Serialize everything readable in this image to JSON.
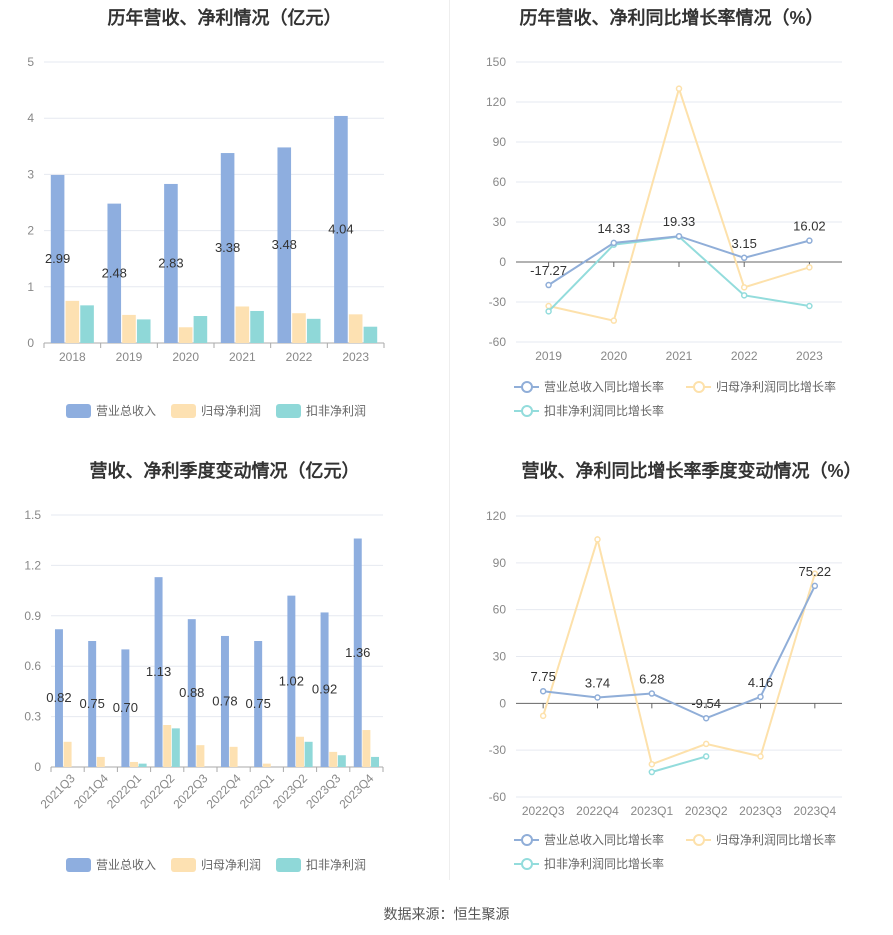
{
  "source_text": "数据来源：恒生聚源",
  "colors": {
    "revenue": "#8eaedf",
    "net_profit": "#fde1b2",
    "deducted_profit": "#8fd8d8",
    "revenue_line": "#90aed8",
    "net_profit_line": "#fde1ab",
    "deducted_line": "#93dcdc"
  },
  "chart_data": [
    {
      "id": "annual-amount",
      "type": "bar",
      "title": "历年营收、净利情况（亿元）",
      "categories": [
        "2018",
        "2019",
        "2020",
        "2021",
        "2022",
        "2023"
      ],
      "ylim": [
        0,
        5
      ],
      "yticks": [
        0,
        1,
        2,
        3,
        4,
        5
      ],
      "yticks_text": [
        "0",
        "1",
        "2",
        "3",
        "4",
        "5"
      ],
      "grid": true,
      "legend_position": "bottom",
      "series": [
        {
          "name": "营业总收入",
          "color_key": "revenue",
          "values": [
            2.99,
            2.48,
            2.83,
            3.38,
            3.48,
            4.04
          ],
          "labels": [
            "2.99",
            "2.48",
            "2.83",
            "3.38",
            "3.48",
            "4.04"
          ]
        },
        {
          "name": "归母净利润",
          "color_key": "net_profit",
          "values": [
            0.75,
            0.5,
            0.28,
            0.65,
            0.53,
            0.51
          ]
        },
        {
          "name": "扣非净利润",
          "color_key": "deducted_profit",
          "values": [
            0.67,
            0.42,
            0.48,
            0.57,
            0.43,
            0.29
          ]
        }
      ]
    },
    {
      "id": "annual-growth",
      "type": "line",
      "title": "历年营收、净利同比增长率情况（%）",
      "categories": [
        "2019",
        "2020",
        "2021",
        "2022",
        "2023"
      ],
      "ylim": [
        -60,
        150
      ],
      "yticks": [
        -60,
        -30,
        0,
        30,
        60,
        90,
        120,
        150
      ],
      "yticks_text": [
        "-60",
        "-30",
        "0",
        "30",
        "60",
        "90",
        "120",
        "150"
      ],
      "grid": true,
      "legend_position": "bottom",
      "series": [
        {
          "name": "营业总收入同比增长率",
          "color_key": "revenue_line",
          "values": [
            -17.27,
            14.33,
            19.33,
            3.15,
            16.02
          ],
          "labels": [
            "-17.27",
            "14.33",
            "19.33",
            "3.15",
            "16.02"
          ]
        },
        {
          "name": "归母净利润同比增长率",
          "color_key": "net_profit_line",
          "values": [
            -33,
            -44,
            130,
            -19,
            -4
          ]
        },
        {
          "name": "扣非净利润同比增长率",
          "color_key": "deducted_line",
          "values": [
            -37,
            13,
            19,
            -25,
            -33
          ]
        }
      ]
    },
    {
      "id": "quarterly-amount",
      "type": "bar",
      "title": "营收、净利季度变动情况（亿元）",
      "categories": [
        "2021Q3",
        "2021Q4",
        "2022Q1",
        "2022Q2",
        "2022Q3",
        "2022Q4",
        "2023Q1",
        "2023Q2",
        "2023Q3",
        "2023Q4"
      ],
      "ylim": [
        0,
        1.5
      ],
      "yticks": [
        0,
        0.3,
        0.6,
        0.9,
        1.2,
        1.5
      ],
      "yticks_text": [
        "0",
        "0.3",
        "0.6",
        "0.9",
        "1.2",
        "1.5"
      ],
      "grid": true,
      "legend_position": "bottom",
      "series": [
        {
          "name": "营业总收入",
          "color_key": "revenue",
          "values": [
            0.82,
            0.75,
            0.7,
            1.13,
            0.88,
            0.78,
            0.75,
            1.02,
            0.92,
            1.36
          ],
          "labels": [
            "0.82",
            "0.75",
            "0.70",
            "1.13",
            "0.88",
            "0.78",
            "0.75",
            "1.02",
            "0.92",
            "1.36"
          ]
        },
        {
          "name": "归母净利润",
          "color_key": "net_profit",
          "values": [
            0.15,
            0.06,
            0.03,
            0.25,
            0.13,
            0.12,
            0.02,
            0.18,
            0.09,
            0.22
          ]
        },
        {
          "name": "扣非净利润",
          "color_key": "deducted_profit",
          "values": [
            0,
            0,
            0.02,
            0.23,
            0,
            0,
            0,
            0.15,
            0.07,
            0.06
          ]
        }
      ]
    },
    {
      "id": "quarterly-growth",
      "type": "line",
      "title": "营收、净利同比增长率季度变动情况（%）",
      "categories": [
        "2022Q3",
        "2022Q4",
        "2023Q1",
        "2023Q2",
        "2023Q3",
        "2023Q4"
      ],
      "ylim": [
        -60,
        120
      ],
      "yticks": [
        -60,
        -30,
        0,
        30,
        60,
        90,
        120
      ],
      "yticks_text": [
        "-60",
        "-30",
        "0",
        "30",
        "60",
        "90",
        "120"
      ],
      "grid": true,
      "legend_position": "bottom",
      "series": [
        {
          "name": "营业总收入同比增长率",
          "color_key": "revenue_line",
          "values": [
            7.75,
            3.74,
            6.28,
            -9.54,
            4.16,
            75.22
          ],
          "labels": [
            "7.75",
            "3.74",
            "6.28",
            "-9.54",
            "4.16",
            "75.22"
          ]
        },
        {
          "name": "归母净利润同比增长率",
          "color_key": "net_profit_line",
          "values": [
            -8,
            105,
            -39,
            -26,
            -34,
            83
          ]
        },
        {
          "name": "扣非净利润同比增长率",
          "color_key": "deducted_line",
          "values": [
            null,
            null,
            -44,
            -34,
            null,
            null
          ]
        }
      ]
    }
  ]
}
